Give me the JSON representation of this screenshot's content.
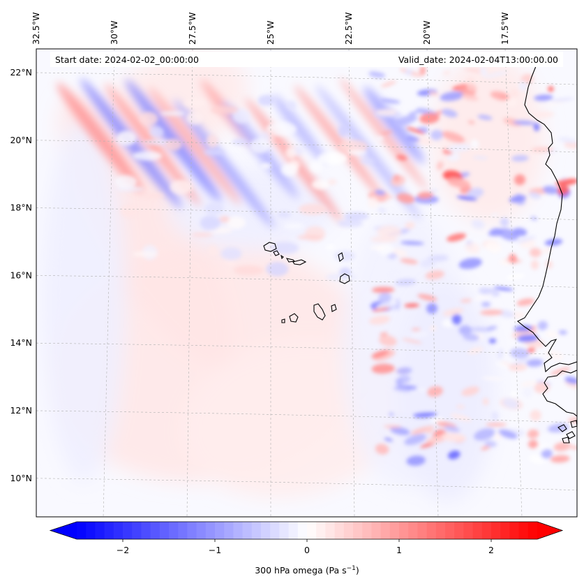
{
  "map": {
    "start_date_text": "Start date: 2024-02-02_00:00:00",
    "valid_date_text": "Valid_date: 2024-02-04T13:00:00.00",
    "lon_ticks": [
      {
        "value": -32.5,
        "label": "32.5°W"
      },
      {
        "value": -30.0,
        "label": "30°W"
      },
      {
        "value": -27.5,
        "label": "27.5°W"
      },
      {
        "value": -25.0,
        "label": "25°W"
      },
      {
        "value": -22.5,
        "label": "22.5°W"
      },
      {
        "value": -20.0,
        "label": "20°W"
      },
      {
        "value": -17.5,
        "label": "17.5°W"
      }
    ],
    "lat_ticks": [
      {
        "value": 22,
        "label": "22°N"
      },
      {
        "value": 20,
        "label": "20°N"
      },
      {
        "value": 18,
        "label": "18°N"
      },
      {
        "value": 16,
        "label": "16°N"
      },
      {
        "value": 14,
        "label": "14°N"
      },
      {
        "value": 12,
        "label": "12°N"
      },
      {
        "value": 10,
        "label": "10°N"
      }
    ],
    "gridlines": true,
    "colormap": "bwr",
    "colors": {
      "negative": "#0000ff",
      "zero": "#ffffff",
      "positive": "#ff0000"
    }
  },
  "colorbar": {
    "label": "300 hPa omega (Pa s",
    "label_sup": "−1",
    "label_close": ")",
    "range": [
      -2.5,
      2.5
    ],
    "ticks": [
      {
        "value": -2,
        "label": "−2"
      },
      {
        "value": -1,
        "label": "−1"
      },
      {
        "value": 0,
        "label": "0"
      },
      {
        "value": 1,
        "label": "1"
      },
      {
        "value": 2,
        "label": "2"
      }
    ],
    "extend": "both"
  }
}
